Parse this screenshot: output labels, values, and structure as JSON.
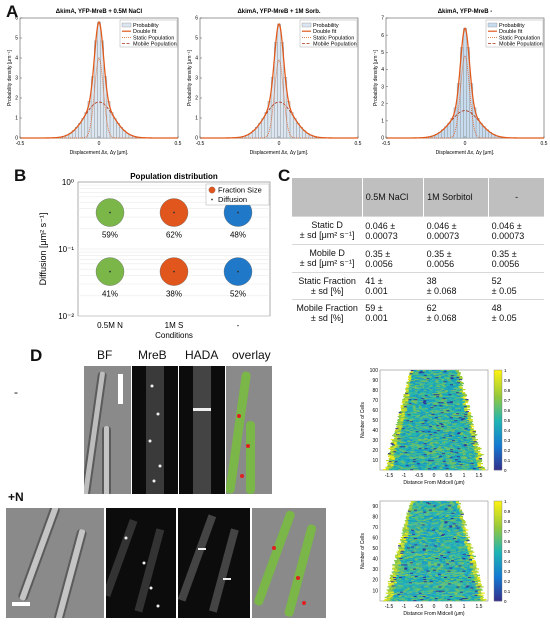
{
  "panels": {
    "a": "A",
    "b": "B",
    "c": "C",
    "d": "D"
  },
  "panel_a": {
    "titles": [
      "ΔkimA, YFP-MreB + 0.5M NaCl",
      "ΔkimA, YFP-MreB + 1M Sorb.",
      "ΔkimA, YFP-MreB -"
    ],
    "ylabel": "Probability density [μm⁻¹]",
    "xlabel": "Displacement Δx, Δy [μm].",
    "legend": [
      "Probability",
      "Double fit",
      "Static Population",
      "Mobile Population"
    ],
    "xticks": [
      "-0.5",
      "0",
      "0.5"
    ],
    "yticks": [
      [
        "0",
        "1",
        "2",
        "3",
        "4",
        "5",
        "6"
      ],
      [
        "0",
        "1",
        "2",
        "3",
        "4",
        "5",
        "6"
      ],
      [
        "0",
        "1",
        "2",
        "3",
        "4",
        "5",
        "6",
        "7"
      ]
    ],
    "colors": {
      "bar_fill": "#dbe6f1",
      "bar_fill_c": "#c7dcef",
      "fit": "#e05a1c",
      "static": "#e05a1c",
      "mobile": "#b03010"
    }
  },
  "chart_data": [
    {
      "type": "bar",
      "title": "ΔkimA, YFP-MreB + 0.5M NaCl",
      "xlabel": "Displacement Δx, Δy [μm].",
      "ylabel": "Probability density [μm⁻¹]",
      "xlim": [
        -0.5,
        0.5
      ],
      "ylim": [
        0,
        6
      ],
      "peak": 5.8,
      "static_peak": 4.0,
      "mobile_peak": 1.8
    },
    {
      "type": "bar",
      "title": "ΔkimA, YFP-MreB + 1M Sorb.",
      "xlabel": "Displacement Δx, Δy [μm].",
      "ylabel": "Probability density [μm⁻¹]",
      "xlim": [
        -0.5,
        0.5
      ],
      "ylim": [
        0,
        6
      ],
      "peak": 5.7,
      "static_peak": 3.9,
      "mobile_peak": 1.8
    },
    {
      "type": "bar",
      "title": "ΔkimA, YFP-MreB -",
      "xlabel": "Displacement Δx, Δy [μm].",
      "ylabel": "Probability density [μm⁻¹]",
      "xlim": [
        -0.5,
        0.5
      ],
      "ylim": [
        0,
        7
      ],
      "peak": 6.4,
      "static_peak": 4.8,
      "mobile_peak": 1.6
    },
    {
      "type": "scatter",
      "title": "Population distribution",
      "xlabel": "Conditions",
      "ylabel": "Diffusion [μm² s⁻¹]",
      "yscale": "log",
      "ylim": [
        0.01,
        1
      ],
      "categories": [
        "0.5M N",
        "1M S",
        "-"
      ],
      "legend": [
        "Fraction Size",
        "Diffusion"
      ],
      "series": [
        {
          "name": "Mobile",
          "diffusion": [
            0.35,
            0.35,
            0.35
          ],
          "labels": [
            "59%",
            "62%",
            "48%"
          ]
        },
        {
          "name": "Static",
          "diffusion": [
            0.046,
            0.046,
            0.046
          ],
          "labels": [
            "41%",
            "38%",
            "52%"
          ]
        }
      ],
      "colors": [
        "#7ab648",
        "#e0561c",
        "#1f78c8"
      ]
    }
  ],
  "panel_b": {
    "title": "Population distribution",
    "ylabel": "Diffusion [μm² s⁻¹]",
    "xlabel": "Conditions",
    "legend": [
      "Fraction Size",
      "Diffusion"
    ],
    "yticks": [
      "10⁰",
      "10⁻¹",
      "10⁻²"
    ],
    "xcats": [
      "0.5M N",
      "1M S",
      "-"
    ],
    "top_labels": [
      "59%",
      "62%",
      "48%"
    ],
    "bottom_labels": [
      "41%",
      "38%",
      "52%"
    ]
  },
  "panel_c": {
    "headers": [
      "",
      "0.5M NaCl",
      "1M Sorbitol",
      "-"
    ],
    "rows": [
      {
        "label": [
          "Static D",
          "± sd [μm² s⁻¹]"
        ],
        "cells": [
          [
            "0.046 ±",
            "0.00073"
          ],
          [
            "0.046 ±",
            "0.00073"
          ],
          [
            "0.046 ±",
            "0.00073"
          ]
        ]
      },
      {
        "label": [
          "Mobile D",
          "± sd [μm² s⁻¹]"
        ],
        "cells": [
          [
            "0.35 ±",
            "0.0056"
          ],
          [
            "0.35 ±",
            "0.0056"
          ],
          [
            "0.35 ±",
            "0.0056"
          ]
        ]
      },
      {
        "label": [
          "Static Fraction",
          "± sd [%]"
        ],
        "cells": [
          [
            "41 ±",
            "0.001"
          ],
          [
            "38",
            "± 0.068"
          ],
          [
            "52",
            "± 0.05"
          ]
        ]
      },
      {
        "label": [
          "Mobile Fraction",
          "± sd [%]"
        ],
        "cells": [
          [
            "59 ±",
            "0.001"
          ],
          [
            "62",
            "± 0.068"
          ],
          [
            "48",
            "± 0.05"
          ]
        ]
      }
    ]
  },
  "panel_d": {
    "row_labels": [
      "-",
      "+N"
    ],
    "column_labels": [
      "BF",
      "MreB",
      "HADA",
      "overlay"
    ],
    "kymo_ylabel": "Number of Cells",
    "kymo_xlabel": "Distance From Midcell (μm)",
    "kymo1_yticks": [
      "100",
      "90",
      "80",
      "70",
      "60",
      "50",
      "40",
      "30",
      "20",
      "10"
    ],
    "kymo2_yticks": [
      "90",
      "80",
      "70",
      "60",
      "50",
      "40",
      "30",
      "20",
      "10"
    ],
    "kymo_xticks": [
      "-1.5",
      "-1",
      "-0.5",
      "0",
      "0.5",
      "1",
      "1.5"
    ],
    "colorbar_ticks": [
      "1",
      "0.9",
      "0.8",
      "0.7",
      "0.6",
      "0.5",
      "0.4",
      "0.3",
      "0.2",
      "0.1",
      "0"
    ]
  }
}
